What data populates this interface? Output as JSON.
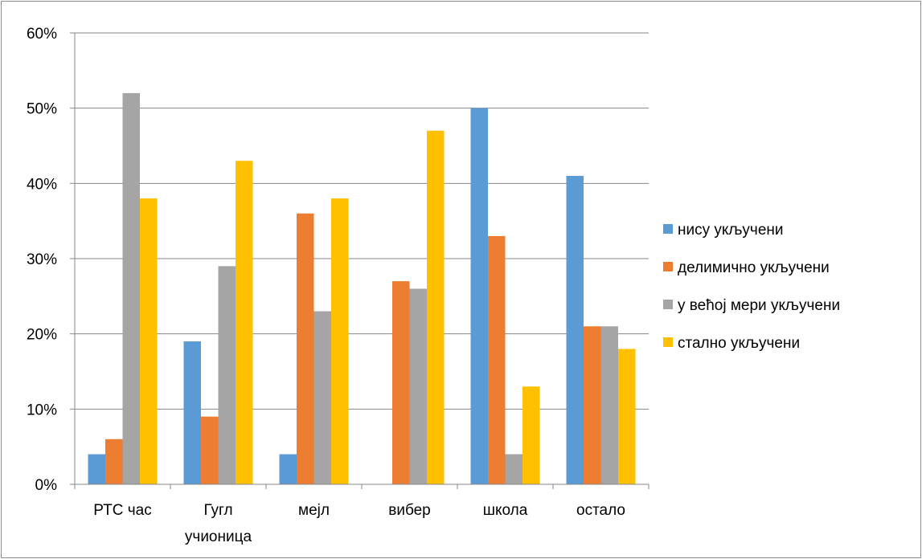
{
  "chart_data": {
    "type": "bar",
    "categories": [
      [
        "РТС час"
      ],
      [
        "Гугл",
        "учионица"
      ],
      [
        "мејл"
      ],
      [
        "вибер"
      ],
      [
        "школа"
      ],
      [
        "остало"
      ]
    ],
    "series": [
      {
        "name": "нису укључени",
        "color": "#5b9bd5",
        "values": [
          4,
          19,
          4,
          0,
          50,
          41
        ]
      },
      {
        "name": "делимично укључени",
        "color": "#ed7d31",
        "values": [
          6,
          9,
          36,
          27,
          33,
          21
        ]
      },
      {
        "name": "у већој мери укључени",
        "color": "#a5a5a5",
        "values": [
          52,
          29,
          23,
          26,
          4,
          21
        ]
      },
      {
        "name": "стално укључени",
        "color": "#ffc000",
        "values": [
          38,
          43,
          38,
          47,
          13,
          18
        ]
      }
    ],
    "y_ticks": [
      "0%",
      "10%",
      "20%",
      "30%",
      "40%",
      "50%",
      "60%"
    ],
    "ylim": [
      0,
      60
    ],
    "y_unit": "percent",
    "grid": true,
    "legend_position": "right",
    "title": "",
    "xlabel": "",
    "ylabel": ""
  }
}
